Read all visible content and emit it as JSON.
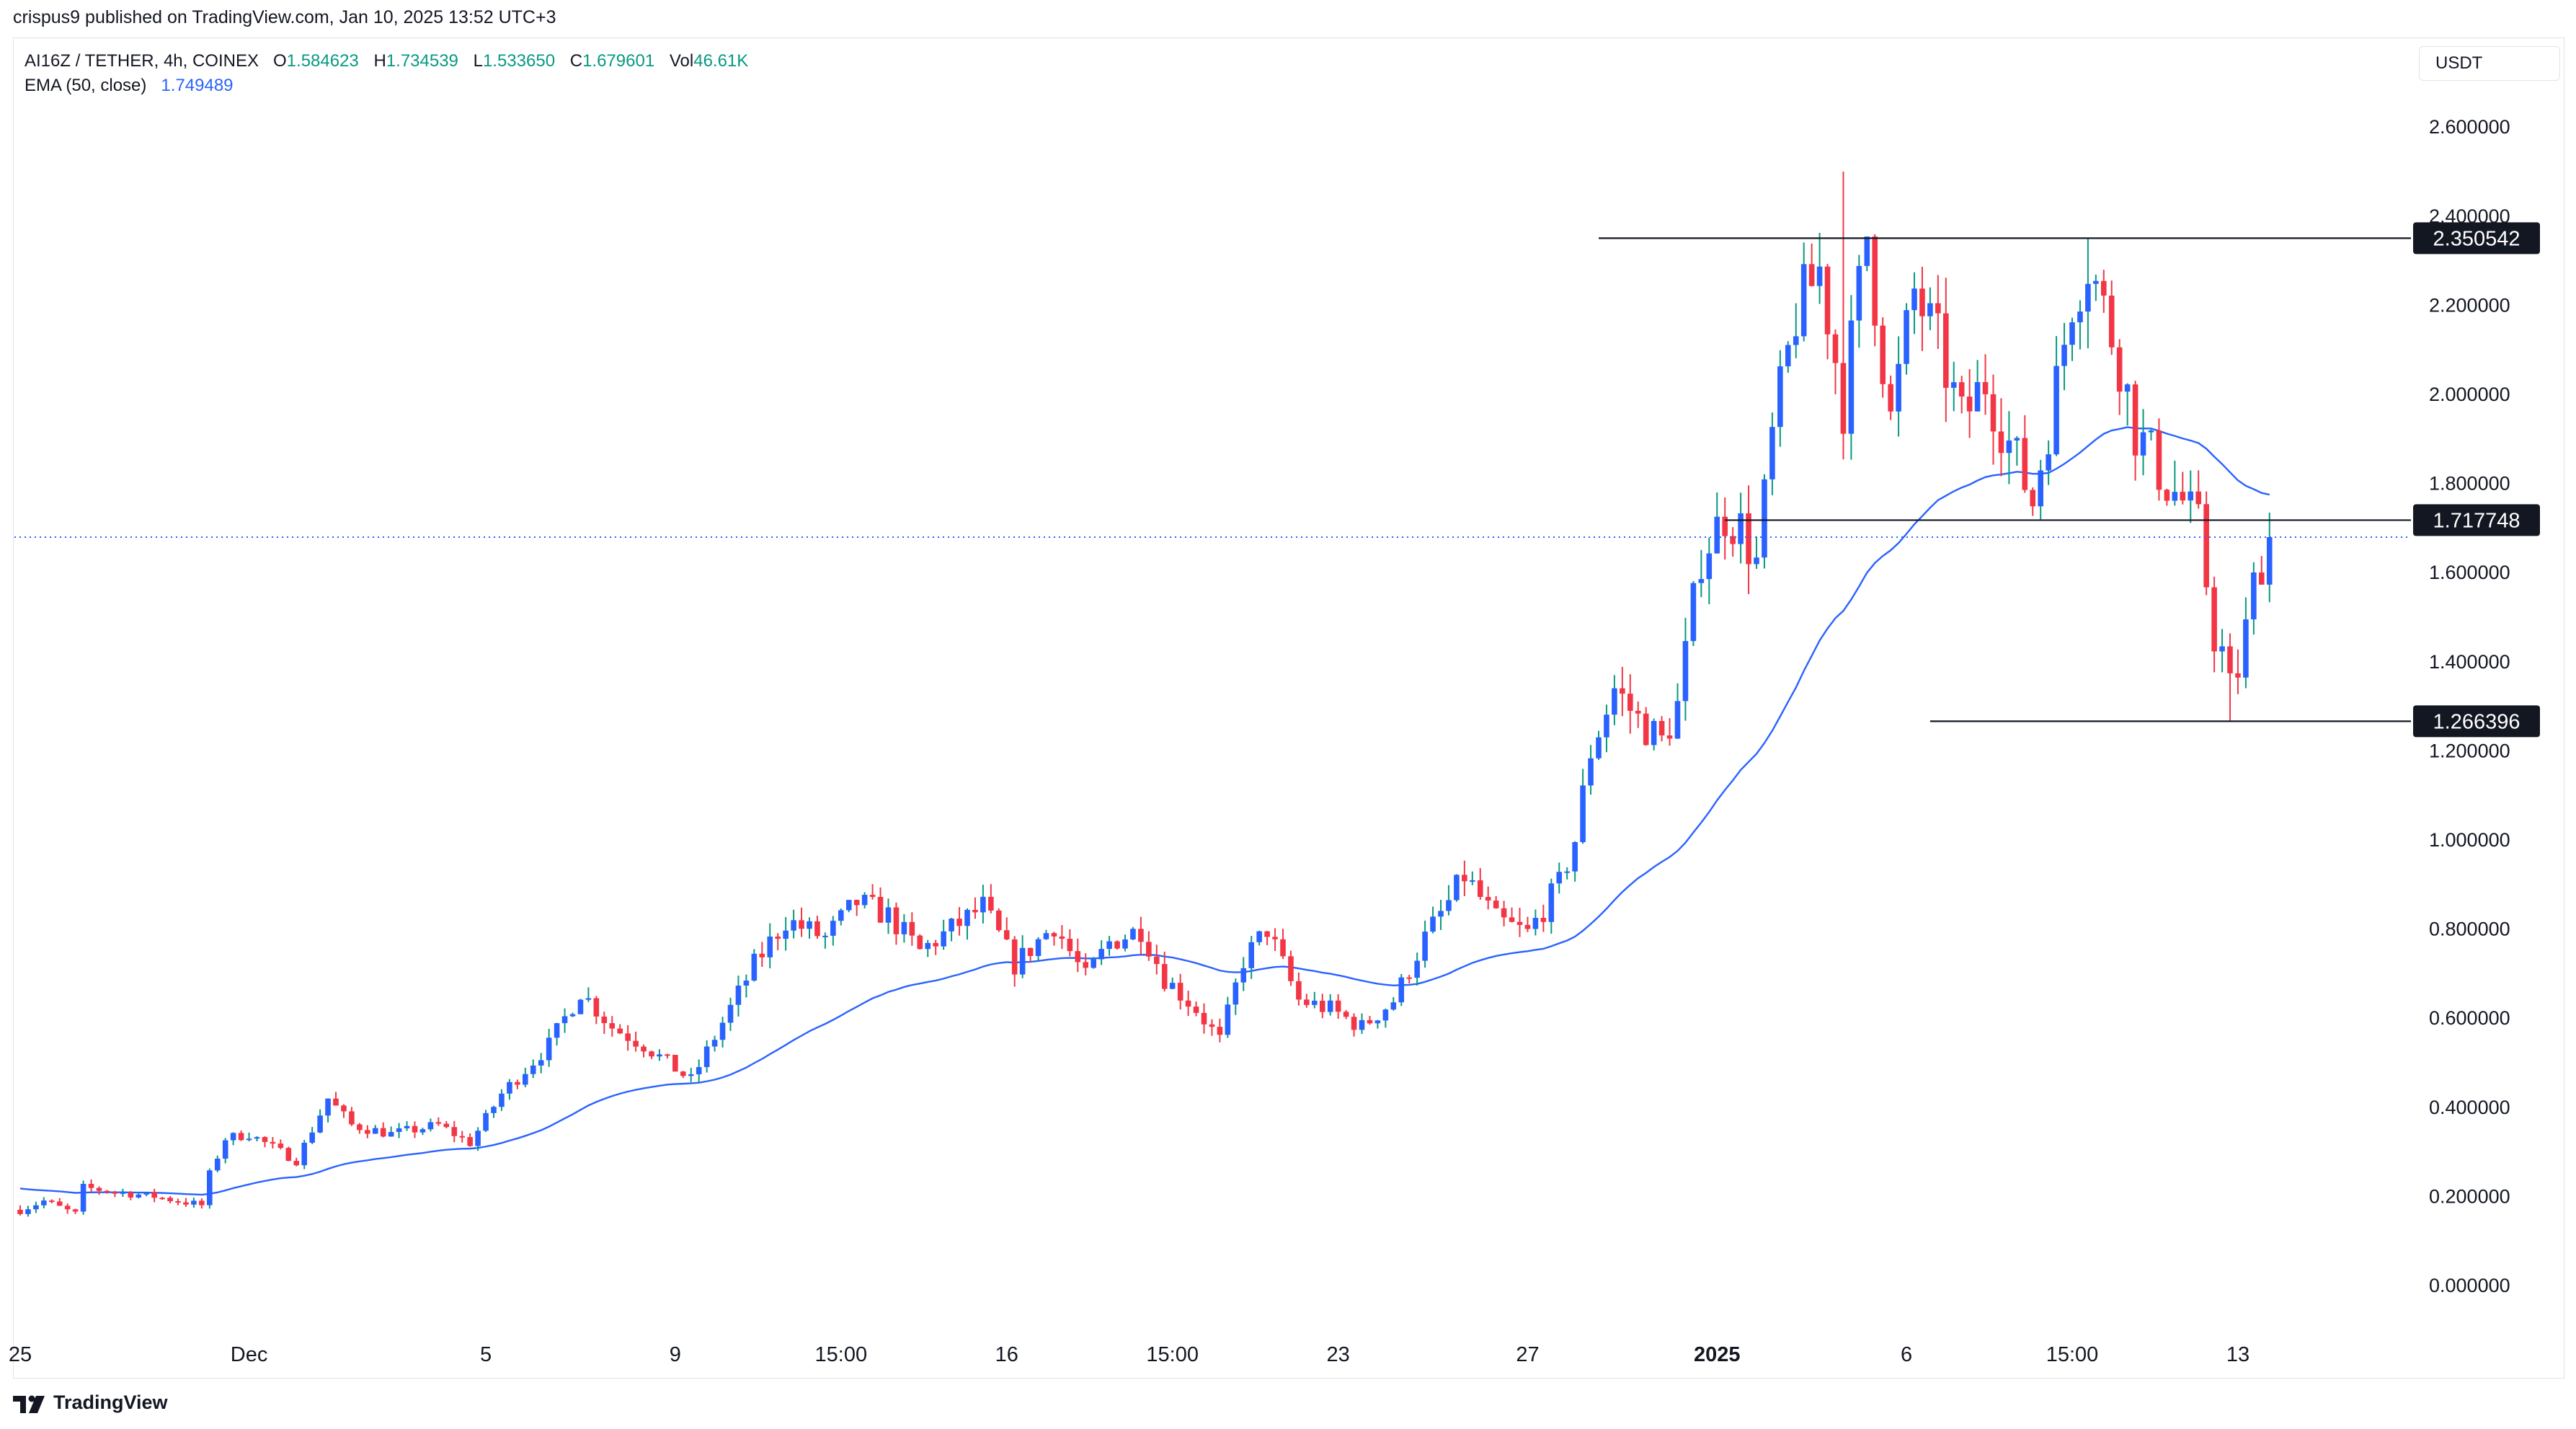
{
  "publisher_line": "crispus9 published on TradingView.com, Jan 10, 2025 13:52 UTC+3",
  "legend": {
    "symbol": "AI16Z / TETHER, 4h, COINEX",
    "o_label": "O",
    "o_value": "1.584623",
    "h_label": "H",
    "h_value": "1.734539",
    "l_label": "L",
    "l_value": "1.533650",
    "c_label": "C",
    "c_value": "1.679601",
    "vol_label": "Vol",
    "vol_value": "46.61K",
    "ema_label": "EMA (50, close)",
    "ema_value": "1.749489"
  },
  "currency_button": "USDT",
  "branding": {
    "logo_icon": "tradingview-logo-icon",
    "name": "TradingView"
  },
  "colors": {
    "up": "#089981",
    "up_body": "#2962ff",
    "down": "#f23645",
    "ema": "#2962ff",
    "level_line": "#131722",
    "last_price_line": "#2962ff"
  },
  "chart_data": {
    "type": "candlestick",
    "ylim": [
      -0.05,
      2.72
    ],
    "y_ticks": [
      "0.000000",
      "0.200000",
      "0.400000",
      "0.600000",
      "0.800000",
      "1.000000",
      "1.200000",
      "1.400000",
      "1.600000",
      "1.800000",
      "2.000000",
      "2.200000",
      "2.400000",
      "2.600000"
    ],
    "x_ticks": [
      {
        "label": "25",
        "t": 0
      },
      {
        "label": "Dec",
        "t": 29
      },
      {
        "label": "5",
        "t": 59
      },
      {
        "label": "9",
        "t": 83
      },
      {
        "label": "15:00",
        "t": 104
      },
      {
        "label": "16",
        "t": 125
      },
      {
        "label": "15:00",
        "t": 146
      },
      {
        "label": "23",
        "t": 167
      },
      {
        "label": "27",
        "t": 191
      },
      {
        "label": "2025",
        "t": 215,
        "bold": true
      },
      {
        "label": "6",
        "t": 239
      },
      {
        "label": "15:00",
        "t": 260
      },
      {
        "label": "13",
        "t": 281
      }
    ],
    "horizontal_levels": [
      {
        "value": 2.350542,
        "label": "2.350542",
        "from_t": 200
      },
      {
        "value": 1.717748,
        "label": "1.717748",
        "from_t": 216
      },
      {
        "value": 1.266396,
        "label": "1.266396",
        "from_t": 242
      }
    ],
    "last_price": 1.679601,
    "ema_period": 50,
    "price_path": [
      [
        0,
        0.17
      ],
      [
        3,
        0.19
      ],
      [
        7,
        0.16
      ],
      [
        8,
        0.22
      ],
      [
        12,
        0.21
      ],
      [
        17,
        0.2
      ],
      [
        23,
        0.18
      ],
      [
        24,
        0.25
      ],
      [
        26,
        0.33
      ],
      [
        29,
        0.34
      ],
      [
        35,
        0.28
      ],
      [
        39,
        0.42
      ],
      [
        42,
        0.36
      ],
      [
        47,
        0.34
      ],
      [
        53,
        0.36
      ],
      [
        57,
        0.32
      ],
      [
        61,
        0.43
      ],
      [
        67,
        0.54
      ],
      [
        71,
        0.66
      ],
      [
        75,
        0.58
      ],
      [
        79,
        0.54
      ],
      [
        85,
        0.46
      ],
      [
        89,
        0.59
      ],
      [
        93,
        0.72
      ],
      [
        97,
        0.82
      ],
      [
        102,
        0.78
      ],
      [
        106,
        0.86
      ],
      [
        110,
        0.83
      ],
      [
        114,
        0.75
      ],
      [
        118,
        0.8
      ],
      [
        122,
        0.85
      ],
      [
        126,
        0.72
      ],
      [
        131,
        0.81
      ],
      [
        135,
        0.69
      ],
      [
        138,
        0.77
      ],
      [
        142,
        0.8
      ],
      [
        145,
        0.69
      ],
      [
        149,
        0.62
      ],
      [
        152,
        0.55
      ],
      [
        155,
        0.73
      ],
      [
        158,
        0.8
      ],
      [
        162,
        0.64
      ],
      [
        166,
        0.62
      ],
      [
        170,
        0.58
      ],
      [
        174,
        0.64
      ],
      [
        178,
        0.78
      ],
      [
        181,
        0.86
      ],
      [
        183,
        0.92
      ],
      [
        187,
        0.82
      ],
      [
        191,
        0.79
      ],
      [
        195,
        0.9
      ],
      [
        197,
        1.0
      ],
      [
        199,
        1.2
      ],
      [
        202,
        1.34
      ],
      [
        205,
        1.27
      ],
      [
        208,
        1.22
      ],
      [
        210,
        1.3
      ],
      [
        213,
        1.64
      ],
      [
        216,
        1.73
      ],
      [
        218,
        1.7
      ],
      [
        220,
        1.62
      ],
      [
        222,
        1.9
      ],
      [
        225,
        2.18
      ],
      [
        228,
        2.28
      ],
      [
        231,
        1.98
      ],
      [
        234,
        2.36
      ],
      [
        237,
        1.94
      ],
      [
        240,
        2.23
      ],
      [
        243,
        2.11
      ],
      [
        246,
        1.94
      ],
      [
        249,
        2.03
      ],
      [
        252,
        1.89
      ],
      [
        255,
        1.76
      ],
      [
        258,
        2.02
      ],
      [
        260,
        2.22
      ],
      [
        262,
        2.3
      ],
      [
        264,
        2.19
      ],
      [
        266,
        2.08
      ],
      [
        268,
        1.92
      ],
      [
        270,
        1.86
      ],
      [
        272,
        1.8
      ],
      [
        274,
        1.76
      ],
      [
        276,
        1.7
      ],
      [
        277,
        1.58
      ],
      [
        278,
        1.46
      ],
      [
        279,
        1.42
      ],
      [
        280,
        1.34
      ],
      [
        281,
        1.38
      ],
      [
        282,
        1.47
      ],
      [
        283,
        1.57
      ],
      [
        284,
        1.63
      ],
      [
        285,
        1.68
      ]
    ]
  }
}
